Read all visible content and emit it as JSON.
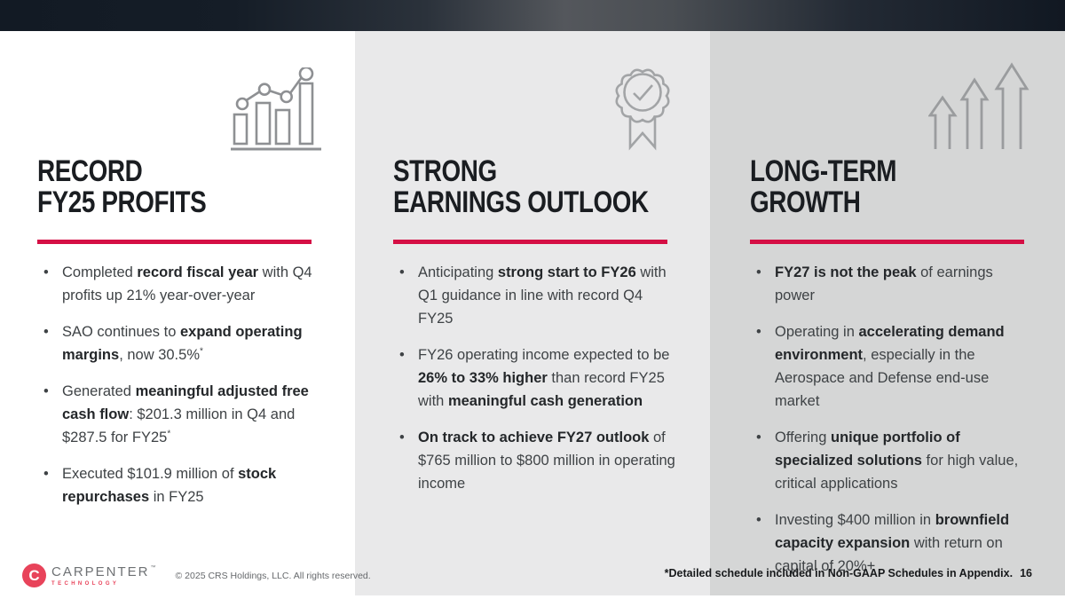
{
  "slide": {
    "colors": {
      "accent": "#D50F45",
      "brand_red": "#E8435A",
      "top_band_dark": "#121A24",
      "top_band_light": "#54575C",
      "col2_bg": "#E9E9EA",
      "col3_bg": "#D5D6D6"
    },
    "columns": [
      {
        "id": "record-fy25-profits",
        "icon": "bar-chart-trend-icon",
        "title_line1": "RECORD",
        "title_line2": "FY25 PROFITS",
        "bullets": [
          [
            {
              "t": "Completed "
            },
            {
              "t": "record fiscal year",
              "b": true
            },
            {
              "t": " with Q4 profits up 21% year-over-year"
            }
          ],
          [
            {
              "t": "SAO continues to "
            },
            {
              "t": "expand operating margins",
              "b": true
            },
            {
              "t": ", now 30.5%"
            },
            {
              "t": "*",
              "sup": true
            }
          ],
          [
            {
              "t": "Generated "
            },
            {
              "t": "meaningful adjusted free cash flow",
              "b": true
            },
            {
              "t": ": $201.3 million in Q4 and $287.5 for FY25"
            },
            {
              "t": "*",
              "sup": true
            }
          ],
          [
            {
              "t": "Executed $101.9 million of "
            },
            {
              "t": "stock repurchases",
              "b": true
            },
            {
              "t": " in FY25"
            }
          ]
        ]
      },
      {
        "id": "strong-earnings-outlook",
        "icon": "award-badge-check-icon",
        "title_line1": "STRONG",
        "title_line2": "EARNINGS OUTLOOK",
        "bullets": [
          [
            {
              "t": "Anticipating "
            },
            {
              "t": "strong start to FY26",
              "b": true
            },
            {
              "t": " with Q1 guidance in line with record Q4 FY25"
            }
          ],
          [
            {
              "t": "FY26 operating income expected to be "
            },
            {
              "t": "26% to 33% higher",
              "b": true
            },
            {
              "t": " than record FY25 with "
            },
            {
              "t": "meaningful cash generation",
              "b": true
            }
          ],
          [
            {
              "t": "On track to achieve FY27 outlook",
              "b": true
            },
            {
              "t": " of $765 million to $800 million in operating income"
            }
          ]
        ]
      },
      {
        "id": "long-term-growth",
        "icon": "growth-arrows-icon",
        "title_line1": "LONG-TERM",
        "title_line2": "GROWTH",
        "bullets": [
          [
            {
              "t": "FY27 is not the peak",
              "b": true
            },
            {
              "t": " of earnings power"
            }
          ],
          [
            {
              "t": "Operating in "
            },
            {
              "t": "accelerating demand environment",
              "b": true
            },
            {
              "t": ", especially in the Aerospace and Defense end-use market"
            }
          ],
          [
            {
              "t": "Offering "
            },
            {
              "t": "unique portfolio of specialized solutions",
              "b": true
            },
            {
              "t": " for high value, critical applications"
            }
          ],
          [
            {
              "t": "Investing $400 million in "
            },
            {
              "t": "brownfield capacity expansion",
              "b": true
            },
            {
              "t": " with return on capital of 20%+"
            }
          ]
        ]
      }
    ],
    "footer": {
      "logo_mark": "C",
      "brand": "CARPENTER",
      "brand_trademark": "™",
      "brand_sub": "TECHNOLOGY",
      "copyright": "© 2025 CRS Holdings, LLC. All rights reserved."
    },
    "footnote": "*Detailed schedule included in Non-GAAP Schedules in Appendix.",
    "page_number": "16"
  }
}
